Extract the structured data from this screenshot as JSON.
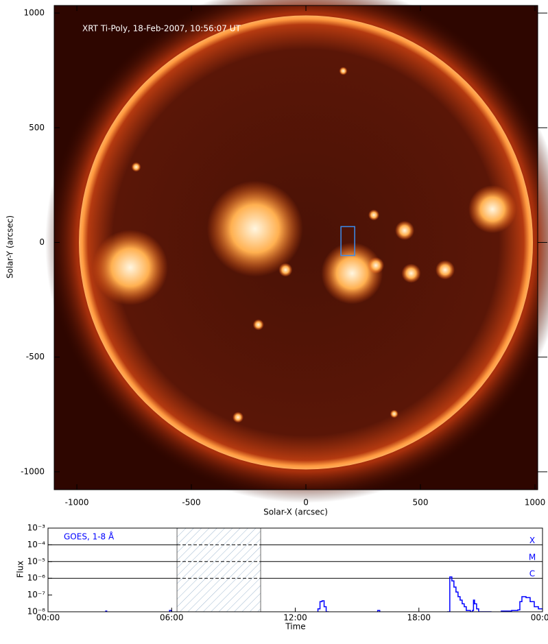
{
  "chart_data": [
    {
      "type": "image",
      "annotation": "XRT Ti-Poly, 18-Feb-2007, 10:56:07 UT",
      "xlabel": "Solar-X (arcsec)",
      "ylabel": "Solar-Y (arcsec)",
      "xlim": [
        -1099,
        1012
      ],
      "ylim": [
        -1078,
        1033
      ],
      "xticks": [
        -1000,
        -500,
        0,
        500,
        1000
      ],
      "yticks": [
        -1000,
        -500,
        0,
        500,
        1000
      ],
      "box": {
        "x": [
          153,
          213
        ],
        "y": [
          -57,
          69
        ],
        "color": "#3b8ef0"
      }
    },
    {
      "type": "line",
      "annotation": "GOES, 1-8 Å",
      "xlabel": "Time",
      "ylabel": "Flux",
      "log_y": true,
      "xlim": [
        0,
        24
      ],
      "ylim": [
        1e-08,
        0.001
      ],
      "xticks": [
        {
          "value": 0,
          "label": "00:00"
        },
        {
          "value": 6,
          "label": "06:00"
        },
        {
          "value": 12,
          "label": "12:00"
        },
        {
          "value": 18,
          "label": "18:00"
        },
        {
          "value": 24,
          "label": "00:00"
        }
      ],
      "yticks": [
        {
          "value": 1e-08,
          "label": "10⁻⁸"
        },
        {
          "value": 1e-07,
          "label": "10⁻⁷"
        },
        {
          "value": 1e-06,
          "label": "10⁻⁶"
        },
        {
          "value": 1e-05,
          "label": "10⁻⁵"
        },
        {
          "value": 0.0001,
          "label": "10⁻⁴"
        },
        {
          "value": 0.001,
          "label": "10⁻³"
        }
      ],
      "levels": [
        {
          "value": 0.0001,
          "label": "X"
        },
        {
          "value": 1e-05,
          "label": "M"
        },
        {
          "value": 1e-06,
          "label": "C"
        }
      ],
      "shaded": [
        6.26,
        10.32
      ],
      "series": [
        {
          "name": "GOES, 1-8 Å",
          "color": "#0000ff",
          "x": [
            0,
            2.75,
            2.8,
            2.85,
            5.8,
            5.9,
            6.0,
            13.0,
            13.1,
            13.2,
            13.3,
            13.4,
            13.5,
            13.6,
            15.9,
            16.0,
            16.1,
            19.3,
            19.4,
            19.5,
            19.6,
            19.7,
            19.8,
            19.9,
            20.0,
            20.1,
            20.2,
            20.3,
            20.5,
            20.6,
            20.65,
            20.7,
            20.8,
            20.9,
            21.5,
            22.0,
            22.5,
            22.8,
            22.9,
            23.0,
            23.2,
            23.4,
            23.6,
            23.8,
            24.0
          ],
          "values": [
            8e-09,
            8e-09,
            1.1e-08,
            8e-09,
            8e-09,
            1.2e-08,
            8e-09,
            8e-09,
            1.5e-08,
            4e-08,
            4.5e-08,
            2e-08,
            1e-08,
            8e-09,
            8e-09,
            1.2e-08,
            8e-09,
            8e-09,
            1e-08,
            1.2e-06,
            7e-07,
            3e-07,
            1.5e-07,
            8e-08,
            5e-08,
            3e-08,
            2e-08,
            1.2e-08,
            1e-08,
            1.2e-08,
            5e-08,
            3e-08,
            1.5e-08,
            1e-08,
            8e-09,
            1.1e-08,
            1.2e-08,
            1.3e-08,
            4e-08,
            8e-08,
            7e-08,
            4e-08,
            2e-08,
            1.5e-08,
            1.4e-08
          ]
        }
      ]
    }
  ]
}
